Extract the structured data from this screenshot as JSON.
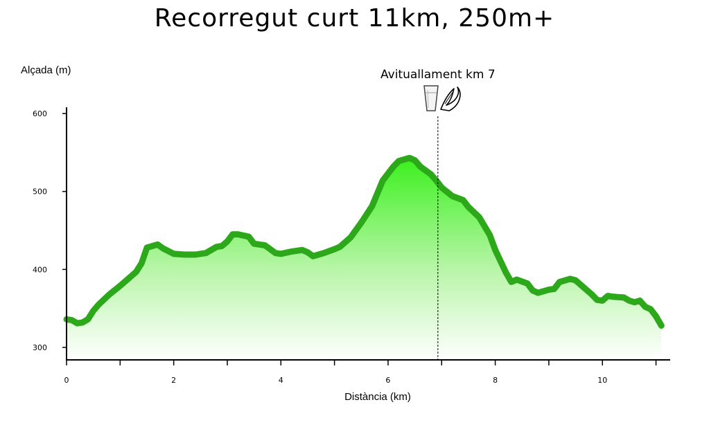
{
  "chart_data": {
    "type": "area",
    "title": "Recorregut curt  11km, 250m+",
    "xlabel": "Distància (km)",
    "ylabel": "Alçada (m)",
    "xlim": [
      0,
      11.2
    ],
    "ylim": [
      290,
      620
    ],
    "x_ticks": [
      0,
      1,
      2,
      3,
      4,
      5,
      6,
      7,
      8,
      9,
      10,
      11
    ],
    "x_tick_labels": [
      "0",
      "",
      "2",
      "",
      "4",
      "",
      "6",
      "",
      "8",
      "",
      "10",
      ""
    ],
    "y_ticks": [
      300,
      400,
      500,
      600
    ],
    "y_tick_labels": [
      "300",
      "400",
      "500",
      "600"
    ],
    "grid": false,
    "colors": {
      "line": "#2ca81a",
      "fill_top": "#3cf01e",
      "fill_bottom": "#ffffff",
      "marker_line": "#000000"
    },
    "annotation": {
      "text": "Avituallament km 7",
      "x": 6.93,
      "icons": [
        "glass-of-water-icon",
        "banana-icon"
      ]
    },
    "series": [
      {
        "x": [
          0.0,
          0.1,
          0.2,
          0.3,
          0.4,
          0.5,
          0.6,
          0.8,
          1.0,
          1.2,
          1.3,
          1.4,
          1.5,
          1.6,
          1.7,
          1.8,
          2.0,
          2.2,
          2.4,
          2.6,
          2.8,
          2.9,
          3.0,
          3.1,
          3.2,
          3.4,
          3.5,
          3.7,
          3.9,
          4.0,
          4.2,
          4.4,
          4.5,
          4.6,
          4.8,
          5.0,
          5.1,
          5.3,
          5.5,
          5.7,
          5.9,
          6.1,
          6.2,
          6.4,
          6.5,
          6.6,
          6.8,
          6.9,
          7.0,
          7.2,
          7.4,
          7.5,
          7.7,
          7.9,
          8.0,
          8.2,
          8.3,
          8.4,
          8.6,
          8.7,
          8.8,
          9.0,
          9.1,
          9.2,
          9.4,
          9.5,
          9.6,
          9.8,
          9.9,
          10.0,
          10.1,
          10.2,
          10.4,
          10.5,
          10.6,
          10.7,
          10.8,
          10.9,
          11.0,
          11.1
        ],
        "y": [
          336,
          335,
          331,
          332,
          336,
          347,
          355,
          368,
          379,
          391,
          397,
          408,
          428,
          430,
          432,
          427,
          420,
          419,
          419,
          421,
          429,
          430,
          436,
          445,
          445,
          442,
          433,
          431,
          421,
          420,
          423,
          425,
          422,
          417,
          421,
          426,
          429,
          441,
          460,
          481,
          514,
          532,
          539,
          543,
          540,
          532,
          522,
          514,
          505,
          494,
          489,
          480,
          467,
          444,
          425,
          396,
          384,
          387,
          382,
          373,
          370,
          374,
          375,
          384,
          388,
          386,
          380,
          368,
          361,
          360,
          366,
          365,
          364,
          360,
          358,
          360,
          352,
          349,
          340,
          328
        ]
      }
    ]
  }
}
